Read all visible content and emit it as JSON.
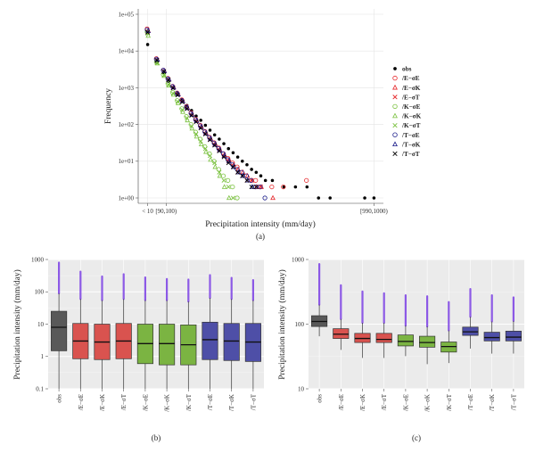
{
  "chart_data": [
    {
      "id": "a",
      "type": "scatter",
      "caption": "(a)",
      "xlabel": "Precipitation intensity (mm/day)",
      "ylabel": "Frequency",
      "y_scale": "log",
      "ylim": [
        1,
        100000
      ],
      "xlim": [
        0,
        100
      ],
      "x_tick_labels": [
        {
          "label": "< 10",
          "x": 1
        },
        {
          "label": "[90,100)",
          "x": 9
        },
        {
          "label": "[990,1000)",
          "x": 99
        }
      ],
      "y_tick_labels": [
        "1e+00",
        "1e+01",
        "1e+02",
        "1e+03",
        "1e+04",
        "1e+05"
      ],
      "legend_position": "right",
      "series": [
        {
          "name": "obs",
          "marker": "dot",
          "color": "#000000",
          "x": [
            1,
            5,
            8,
            10,
            12,
            14,
            16,
            18,
            20,
            22,
            24,
            26,
            28,
            30,
            32,
            34,
            36,
            38,
            40,
            42,
            44,
            46,
            48,
            50,
            52,
            55,
            60,
            65,
            70,
            75,
            80,
            95,
            99
          ],
          "y": [
            15000,
            5000,
            2600,
            1500,
            1000,
            700,
            480,
            330,
            240,
            170,
            130,
            95,
            70,
            52,
            40,
            30,
            22,
            17,
            13,
            10,
            8,
            6,
            5,
            4,
            3,
            3,
            2,
            2,
            2,
            1,
            1,
            1,
            1
          ]
        },
        {
          "name": "/E−σE",
          "marker": "circle",
          "color": "#e6262a",
          "x": [
            1,
            5,
            8,
            10,
            12,
            14,
            16,
            18,
            20,
            22,
            24,
            26,
            28,
            30,
            32,
            34,
            36,
            38,
            40,
            42,
            44,
            46,
            48,
            50,
            55,
            60,
            70
          ],
          "y": [
            40000,
            6200,
            3000,
            1800,
            1100,
            720,
            470,
            310,
            210,
            140,
            95,
            65,
            45,
            32,
            23,
            16,
            12,
            9,
            7,
            5,
            4,
            3,
            3,
            2,
            2,
            2,
            3
          ]
        },
        {
          "name": "/E−σK",
          "marker": "triangle",
          "color": "#e6262a",
          "x": [
            1,
            5,
            8,
            10,
            12,
            14,
            16,
            18,
            20,
            22,
            24,
            26,
            28,
            30,
            32,
            34,
            36,
            38,
            40,
            42,
            44,
            46,
            48,
            50,
            55
          ],
          "y": [
            36000,
            5900,
            2900,
            1700,
            1050,
            680,
            440,
            290,
            190,
            130,
            88,
            60,
            42,
            30,
            21,
            15,
            11,
            8,
            6,
            5,
            4,
            3,
            2,
            2,
            1
          ]
        },
        {
          "name": "/E−σT",
          "marker": "x",
          "color": "#e6262a",
          "x": [
            1,
            5,
            8,
            10,
            12,
            14,
            16,
            18,
            20,
            22,
            24,
            26,
            28,
            30,
            32,
            34,
            36,
            38,
            40,
            42,
            44,
            46,
            48,
            50
          ],
          "y": [
            34000,
            5700,
            2800,
            1650,
            1000,
            650,
            420,
            275,
            180,
            122,
            82,
            56,
            39,
            28,
            20,
            14,
            10,
            7,
            5,
            4,
            3,
            3,
            2,
            2
          ]
        },
        {
          "name": "/K−σE",
          "marker": "circle",
          "color": "#7ac13f",
          "x": [
            1,
            5,
            8,
            10,
            12,
            14,
            16,
            18,
            20,
            22,
            24,
            26,
            28,
            30,
            32,
            34,
            36,
            38,
            40
          ],
          "y": [
            33000,
            5000,
            2300,
            1300,
            750,
            450,
            270,
            165,
            100,
            62,
            40,
            25,
            16,
            10,
            6,
            4,
            3,
            2,
            1
          ]
        },
        {
          "name": "/K−σK",
          "marker": "triangle",
          "color": "#7ac13f",
          "x": [
            1,
            5,
            8,
            10,
            12,
            14,
            16,
            18,
            20,
            22,
            24,
            26,
            28,
            30,
            32,
            34,
            36
          ],
          "y": [
            26000,
            4600,
            2100,
            1150,
            650,
            380,
            220,
            130,
            78,
            47,
            29,
            18,
            11,
            7,
            4,
            2,
            1
          ]
        },
        {
          "name": "/K−σT",
          "marker": "x",
          "color": "#7ac13f",
          "x": [
            1,
            5,
            8,
            10,
            12,
            14,
            16,
            18,
            20,
            22,
            24,
            26,
            28,
            30,
            32,
            34,
            36,
            38
          ],
          "y": [
            30000,
            4800,
            2200,
            1200,
            700,
            420,
            250,
            150,
            90,
            55,
            35,
            22,
            14,
            9,
            5,
            3,
            2,
            1
          ]
        },
        {
          "name": "/T−σE",
          "marker": "circle",
          "color": "#1d1f8c",
          "x": [
            1,
            5,
            8,
            10,
            12,
            14,
            16,
            18,
            20,
            22,
            24,
            26,
            28,
            30,
            32,
            34,
            36,
            38,
            40,
            42,
            44,
            46,
            48,
            50,
            52
          ],
          "y": [
            38000,
            6000,
            3000,
            1750,
            1080,
            700,
            450,
            300,
            200,
            135,
            92,
            63,
            44,
            31,
            22,
            16,
            11,
            8,
            6,
            5,
            4,
            3,
            2,
            2,
            1
          ]
        },
        {
          "name": "/T−σK",
          "marker": "triangle",
          "color": "#1d1f8c",
          "x": [
            1,
            5,
            8,
            10,
            12,
            14,
            16,
            18,
            20,
            22,
            24,
            26,
            28,
            30,
            32,
            34,
            36,
            38,
            40,
            42,
            44,
            46
          ],
          "y": [
            35000,
            5800,
            2850,
            1680,
            1020,
            660,
            430,
            280,
            185,
            125,
            84,
            57,
            40,
            28,
            20,
            14,
            10,
            7,
            5,
            4,
            3,
            2
          ]
        },
        {
          "name": "/T−σT",
          "marker": "x",
          "color": "#000000",
          "x": [
            1,
            5,
            8,
            10,
            12,
            14,
            16,
            18,
            20,
            22,
            24,
            26,
            28,
            30,
            32,
            34,
            36,
            38,
            40,
            42,
            44,
            46,
            48
          ],
          "y": [
            32000,
            5600,
            2750,
            1620,
            980,
            630,
            410,
            268,
            176,
            118,
            80,
            55,
            38,
            27,
            19,
            13,
            9,
            7,
            5,
            4,
            3,
            2,
            2
          ]
        }
      ]
    },
    {
      "id": "b",
      "type": "box",
      "caption": "(b)",
      "ylabel": "Precipitation intensity (mm/day)",
      "y_scale": "log",
      "ylim": [
        0.1,
        1000
      ],
      "y_tick_labels": [
        "0.1",
        "1",
        "10",
        "100",
        "1000"
      ],
      "categories": [
        "obs",
        "/E−σE",
        "/E−σK",
        "/E−σT",
        "/K−σE",
        "/K−σK",
        "/K−σT",
        "/T−σE",
        "/T−σK",
        "/T−σT"
      ],
      "colors": [
        "#595959",
        "#d9534f",
        "#d9534f",
        "#d9534f",
        "#7bb442",
        "#7bb442",
        "#7bb442",
        "#4e4fa7",
        "#4e4fa7",
        "#4e4fa7"
      ],
      "boxes": [
        {
          "whisker_low": 0.1,
          "q1": 1.5,
          "median": 8,
          "q3": 25,
          "whisker_high": 90,
          "outlier_max": 800
        },
        {
          "whisker_low": 0.1,
          "q1": 0.85,
          "median": 3,
          "q3": 10.5,
          "whisker_high": 60,
          "outlier_max": 420
        },
        {
          "whisker_low": 0.1,
          "q1": 0.8,
          "median": 2.8,
          "q3": 10,
          "whisker_high": 55,
          "outlier_max": 300
        },
        {
          "whisker_low": 0.1,
          "q1": 0.85,
          "median": 3,
          "q3": 10.5,
          "whisker_high": 60,
          "outlier_max": 350
        },
        {
          "whisker_low": 0.1,
          "q1": 0.6,
          "median": 2.5,
          "q3": 10,
          "whisker_high": 55,
          "outlier_max": 280
        },
        {
          "whisker_low": 0.1,
          "q1": 0.55,
          "median": 2.5,
          "q3": 10,
          "whisker_high": 55,
          "outlier_max": 250
        },
        {
          "whisker_low": 0.1,
          "q1": 0.55,
          "median": 2.3,
          "q3": 9.5,
          "whisker_high": 50,
          "outlier_max": 240
        },
        {
          "whisker_low": 0.1,
          "q1": 0.8,
          "median": 3.3,
          "q3": 11.5,
          "whisker_high": 65,
          "outlier_max": 330
        },
        {
          "whisker_low": 0.1,
          "q1": 0.75,
          "median": 3,
          "q3": 10.5,
          "whisker_high": 60,
          "outlier_max": 270
        },
        {
          "whisker_low": 0.1,
          "q1": 0.7,
          "median": 2.8,
          "q3": 10.5,
          "whisker_high": 55,
          "outlier_max": 230
        }
      ]
    },
    {
      "id": "c",
      "type": "box",
      "caption": "(c)",
      "ylabel": "Precipitation intensity (mm/day)",
      "y_scale": "log",
      "ylim": [
        10,
        1000
      ],
      "y_tick_labels": [
        "10",
        "100",
        "1000"
      ],
      "categories": [
        "obs",
        "/E−σE",
        "/E−σK",
        "/E−σT",
        "/K−σE",
        "/K−σK",
        "/K−σT",
        "/T−σE",
        "/T−σK",
        "/T−σT"
      ],
      "colors": [
        "#595959",
        "#d9534f",
        "#d9534f",
        "#d9534f",
        "#7bb442",
        "#7bb442",
        "#7bb442",
        "#4e4fa7",
        "#4e4fa7",
        "#4e4fa7"
      ],
      "boxes": [
        {
          "whisker_low": 65,
          "q1": 92,
          "median": 110,
          "q3": 135,
          "whisker_high": 200,
          "outlier_max": 850
        },
        {
          "whisker_low": 40,
          "q1": 60,
          "median": 70,
          "q3": 85,
          "whisker_high": 120,
          "outlier_max": 400
        },
        {
          "whisker_low": 30,
          "q1": 52,
          "median": 60,
          "q3": 72,
          "whisker_high": 105,
          "outlier_max": 320
        },
        {
          "whisker_low": 30,
          "q1": 52,
          "median": 58,
          "q3": 72,
          "whisker_high": 105,
          "outlier_max": 300
        },
        {
          "whisker_low": 32,
          "q1": 46,
          "median": 54,
          "q3": 68,
          "whisker_high": 95,
          "outlier_max": 280
        },
        {
          "whisker_low": 24,
          "q1": 44,
          "median": 52,
          "q3": 65,
          "whisker_high": 92,
          "outlier_max": 270
        },
        {
          "whisker_low": 25,
          "q1": 37,
          "median": 45,
          "q3": 53,
          "whisker_high": 80,
          "outlier_max": 220
        },
        {
          "whisker_low": 42,
          "q1": 67,
          "median": 76,
          "q3": 90,
          "whisker_high": 130,
          "outlier_max": 350
        },
        {
          "whisker_low": 35,
          "q1": 55,
          "median": 62,
          "q3": 75,
          "whisker_high": 110,
          "outlier_max": 280
        },
        {
          "whisker_low": 35,
          "q1": 55,
          "median": 63,
          "q3": 78,
          "whisker_high": 112,
          "outlier_max": 260
        }
      ]
    }
  ]
}
